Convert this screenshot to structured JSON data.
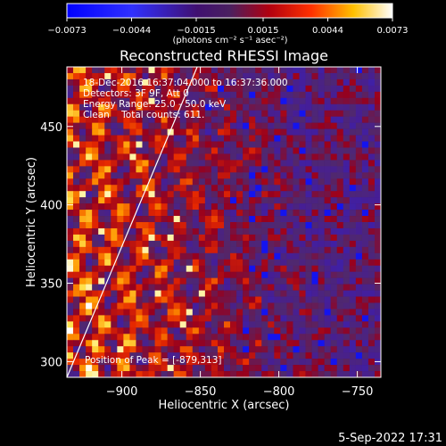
{
  "chart_data": {
    "type": "heatmap",
    "title": "Reconstructed RHESSI Image",
    "xlabel": "Heliocentric X (arcsec)",
    "ylabel": "Heliocentric Y (arcsec)",
    "xlim": [
      -935,
      -735
    ],
    "ylim": [
      290,
      488
    ],
    "x_ticks": [
      -900,
      -850,
      -800,
      -750
    ],
    "y_ticks": [
      300,
      350,
      400,
      450
    ],
    "x_tick_labels": [
      "−900",
      "−850",
      "−800",
      "−750"
    ],
    "y_tick_labels": [
      "300",
      "350",
      "400",
      "450"
    ],
    "colorbar": {
      "min": -0.0073,
      "max": 0.0073,
      "ticks": [
        -0.0073,
        -0.0044,
        -0.0015,
        0.0015,
        0.0044,
        0.0073
      ],
      "tick_labels": [
        "−0.0073",
        "−0.0044",
        "−0.0015",
        "0.0015",
        "0.0044",
        "0.0073"
      ],
      "units": "(photons cm⁻² s⁻¹ asec⁻²)"
    },
    "info_lines": [
      "18-Dec-2016 16:37:04.000 to 16:37:36.000",
      "Detectors: 3F 9F, Att 0",
      "Energy Range: 25.0 - 50.0 keV",
      "Clean    Total counts: 611."
    ],
    "peak_label": "Position of Peak = [-879,313]",
    "peak_position": [
      -879,
      313
    ],
    "limb_line": {
      "x": [
        -935,
        -852
      ],
      "y": [
        290,
        488
      ]
    }
  },
  "footer": {
    "timestamp": "5-Sep-2022 17:31"
  }
}
